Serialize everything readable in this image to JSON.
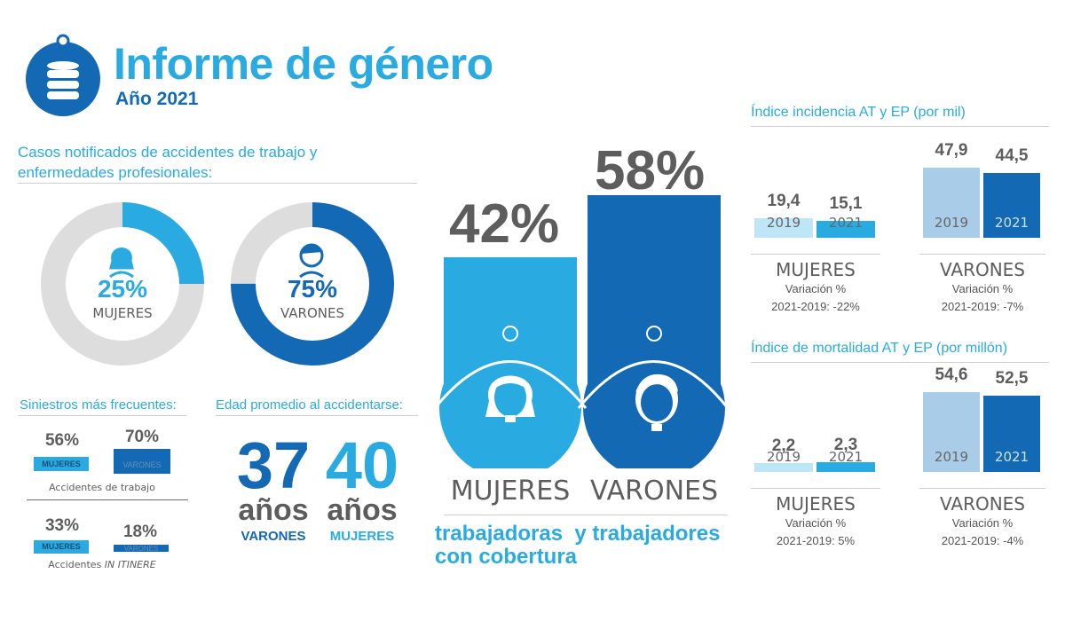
{
  "header": {
    "title": "Informe de género",
    "subtitle": "Año 2021"
  },
  "colors": {
    "cyan": "#29abe2",
    "blue": "#1369b3",
    "light_blue": "#a9cde8",
    "pale_cyan": "#bfe6f6",
    "gray": "#5d5d5d",
    "light_gray": "#dddddd"
  },
  "cases": {
    "heading": "Casos notificados de accidentes de trabajo y enfermedades profesionales:",
    "women": {
      "value": "25%",
      "label": "MUJERES",
      "fraction": 0.25
    },
    "men": {
      "value": "75%",
      "label": "VARONES",
      "fraction": 0.75
    }
  },
  "siniestros": {
    "heading": "Siniestros más frecuentes:",
    "trabajo": {
      "women_value": "56%",
      "women_label": "MUJERES",
      "men_value": "70%",
      "men_label": "VARONES",
      "caption": "Accidentes de trabajo"
    },
    "itinere": {
      "women_value": "33%",
      "women_label": "MUJERES",
      "men_value": "18%",
      "men_label": "VARONES",
      "caption_prefix": "Accidentes",
      "caption_italic": "IN ITINERE"
    }
  },
  "edad": {
    "heading": "Edad promedio al accidentarse:",
    "men": {
      "number": "37",
      "unit": "años",
      "label": "VARONES"
    },
    "women": {
      "number": "40",
      "unit": "años",
      "label": "MUJERES"
    }
  },
  "cobertura": {
    "women_pct": "42%",
    "men_pct": "58%",
    "women_label": "MUJERES",
    "men_label": "VARONES",
    "caption_line1": "trabajadoras  y trabajadores",
    "caption_line2": "con cobertura"
  },
  "chart_data": [
    {
      "type": "bar",
      "title": "Índice incidencia AT y EP (por mil)",
      "categories": [
        "2019",
        "2021"
      ],
      "series": [
        {
          "name": "MUJERES",
          "values": [
            19.4,
            15.1
          ],
          "labels": [
            "19,4",
            "15,1"
          ],
          "variation_title": "Variación %",
          "variation": "2021-2019: -22%"
        },
        {
          "name": "VARONES",
          "values": [
            47.9,
            44.5
          ],
          "labels": [
            "47,9",
            "44,5"
          ],
          "variation_title": "Variación %",
          "variation": "2021-2019: -7%"
        }
      ]
    },
    {
      "type": "bar",
      "title": "Índice de mortalidad AT y EP (por millón)",
      "categories": [
        "2019",
        "2021"
      ],
      "series": [
        {
          "name": "MUJERES",
          "values": [
            2.2,
            2.3
          ],
          "labels": [
            "2,2",
            "2,3"
          ],
          "variation_title": "Variación %",
          "variation": "2021-2019: 5%"
        },
        {
          "name": "VARONES",
          "values": [
            54.6,
            52.5
          ],
          "labels": [
            "54,6",
            "52,5"
          ],
          "variation_title": "Variación %",
          "variation": "2021-2019: -4%"
        }
      ]
    }
  ]
}
